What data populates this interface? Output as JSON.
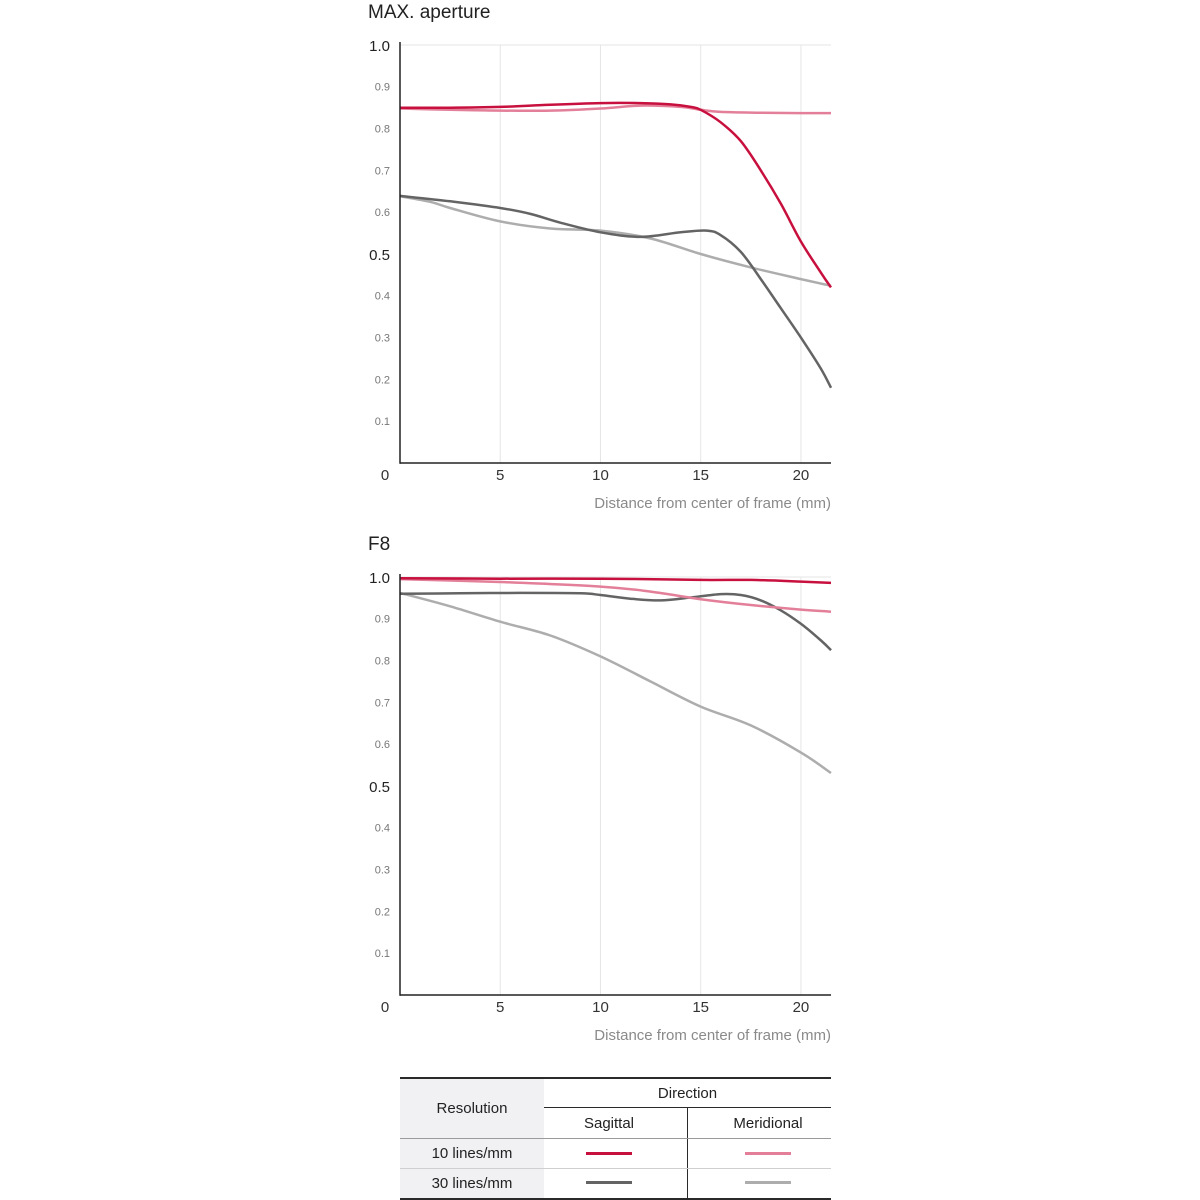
{
  "chart_data": [
    {
      "type": "line",
      "title": "MAX. aperture",
      "xlabel": "Distance from center of frame (mm)",
      "xlim": [
        0,
        21.5
      ],
      "ylim": [
        0,
        1.0
      ],
      "x_ticks": [
        "0",
        "5",
        "10",
        "15",
        "20"
      ],
      "y_ticks": [
        "1.0",
        "0.9",
        "0.8",
        "0.7",
        "0.6",
        "0.5",
        "0.4",
        "0.3",
        "0.2",
        "0.1"
      ],
      "grid": true,
      "series": [
        {
          "color": "#c8103e",
          "x": [
            0,
            2.5,
            5,
            7.5,
            10,
            12,
            13.5,
            14.5,
            15,
            16,
            17,
            18,
            19,
            20,
            21,
            21.5
          ],
          "y": [
            0.85,
            0.85,
            0.852,
            0.857,
            0.861,
            0.861,
            0.858,
            0.852,
            0.845,
            0.815,
            0.77,
            0.7,
            0.62,
            0.53,
            0.455,
            0.42
          ]
        },
        {
          "color": "#e37f99",
          "x": [
            0,
            2.5,
            5,
            7.5,
            10,
            12,
            14,
            15,
            16,
            18,
            20,
            21.5
          ],
          "y": [
            0.848,
            0.845,
            0.843,
            0.843,
            0.848,
            0.855,
            0.852,
            0.845,
            0.84,
            0.838,
            0.837,
            0.837
          ]
        },
        {
          "color": "#646464",
          "x": [
            0,
            2.5,
            5,
            6.5,
            8,
            10,
            12,
            14,
            15.3,
            16,
            17,
            18,
            19,
            20,
            21,
            21.5
          ],
          "y": [
            0.639,
            0.626,
            0.61,
            0.596,
            0.575,
            0.552,
            0.541,
            0.552,
            0.556,
            0.545,
            0.505,
            0.44,
            0.37,
            0.3,
            0.225,
            0.18
          ]
        },
        {
          "color": "#adadad",
          "x": [
            0,
            1.5,
            2.5,
            5,
            7.5,
            10,
            12.5,
            15,
            17.5,
            20,
            21.5
          ],
          "y": [
            0.638,
            0.625,
            0.61,
            0.578,
            0.561,
            0.556,
            0.537,
            0.5,
            0.468,
            0.44,
            0.424
          ]
        }
      ]
    },
    {
      "type": "line",
      "title": "F8",
      "xlabel": "Distance from center of frame (mm)",
      "xlim": [
        0,
        21.5
      ],
      "ylim": [
        0,
        1.0
      ],
      "x_ticks": [
        "0",
        "5",
        "10",
        "15",
        "20"
      ],
      "y_ticks": [
        "1.0",
        "0.9",
        "0.8",
        "0.7",
        "0.6",
        "0.5",
        "0.4",
        "0.3",
        "0.2",
        "0.1"
      ],
      "grid": true,
      "series": [
        {
          "color": "#c8103e",
          "x": [
            0,
            5,
            10,
            15,
            17.5,
            20,
            21.5
          ],
          "y": [
            0.997,
            0.996,
            0.996,
            0.993,
            0.993,
            0.989,
            0.986
          ]
        },
        {
          "color": "#e37f99",
          "x": [
            0,
            5,
            10,
            12.5,
            15,
            17.5,
            20,
            21.5
          ],
          "y": [
            0.995,
            0.988,
            0.977,
            0.965,
            0.947,
            0.933,
            0.922,
            0.917
          ]
        },
        {
          "color": "#646464",
          "x": [
            0,
            3,
            6,
            9,
            10,
            11.5,
            13,
            14.5,
            16,
            17,
            18,
            19,
            20,
            21,
            21.5
          ],
          "y": [
            0.96,
            0.961,
            0.962,
            0.961,
            0.957,
            0.948,
            0.944,
            0.951,
            0.959,
            0.957,
            0.944,
            0.92,
            0.888,
            0.848,
            0.825
          ]
        },
        {
          "color": "#adadad",
          "x": [
            0,
            2.5,
            5,
            7.5,
            10,
            12.5,
            15,
            17.5,
            20,
            21.5
          ],
          "y": [
            0.962,
            0.93,
            0.893,
            0.86,
            0.81,
            0.75,
            0.69,
            0.645,
            0.58,
            0.531
          ]
        }
      ]
    }
  ],
  "legend": {
    "row_header": "Resolution",
    "column_group": "Direction",
    "columns": [
      "Sagittal",
      "Meridional"
    ],
    "rows": [
      {
        "label": "10 lines/mm",
        "colors": [
          "#c8103e",
          "#e37f99"
        ]
      },
      {
        "label": "30 lines/mm",
        "colors": [
          "#646464",
          "#adadad"
        ]
      }
    ]
  }
}
